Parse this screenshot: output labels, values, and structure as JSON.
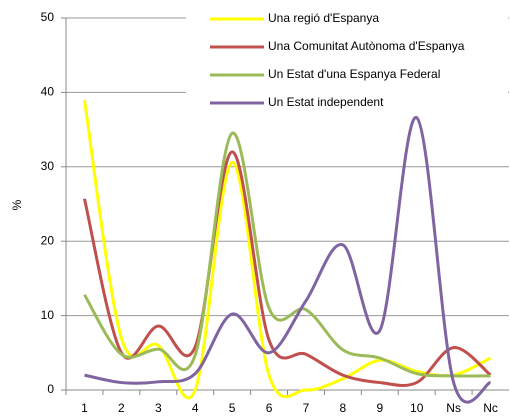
{
  "chart_data": {
    "type": "line",
    "ylabel": "%",
    "categories": [
      "1",
      "2",
      "3",
      "4",
      "5",
      "6",
      "7",
      "8",
      "9",
      "10",
      "Ns",
      "Nc"
    ],
    "series": [
      {
        "name": "Una regió d'Espanya",
        "color": "#ffff00",
        "values": [
          39,
          7,
          6,
          0,
          30.6,
          2,
          0,
          1.5,
          4,
          2.5,
          2,
          4.3
        ]
      },
      {
        "name": "Una Comunitat Autònoma d'Espanya",
        "color": "#c0504d",
        "values": [
          25.7,
          5,
          8.6,
          5.8,
          32,
          6.7,
          4.8,
          2,
          1,
          1,
          5.7,
          2
        ]
      },
      {
        "name": "Un Estat d'una Espanya Federal",
        "color": "#9bbb59",
        "values": [
          12.8,
          4.8,
          5.5,
          4.7,
          34.5,
          11,
          10.8,
          5.4,
          4.3,
          2.2,
          1.9,
          1.9
        ]
      },
      {
        "name": "Un Estat independent",
        "color": "#8064a2",
        "values": [
          2,
          1,
          1.1,
          2.2,
          10.2,
          5,
          12,
          19.5,
          8,
          36.6,
          1,
          1
        ]
      }
    ],
    "ylim": [
      0,
      50
    ],
    "yticks": [
      0,
      10,
      20,
      30,
      40,
      50
    ],
    "grid": true,
    "legend": "upper right",
    "smooth": true
  }
}
